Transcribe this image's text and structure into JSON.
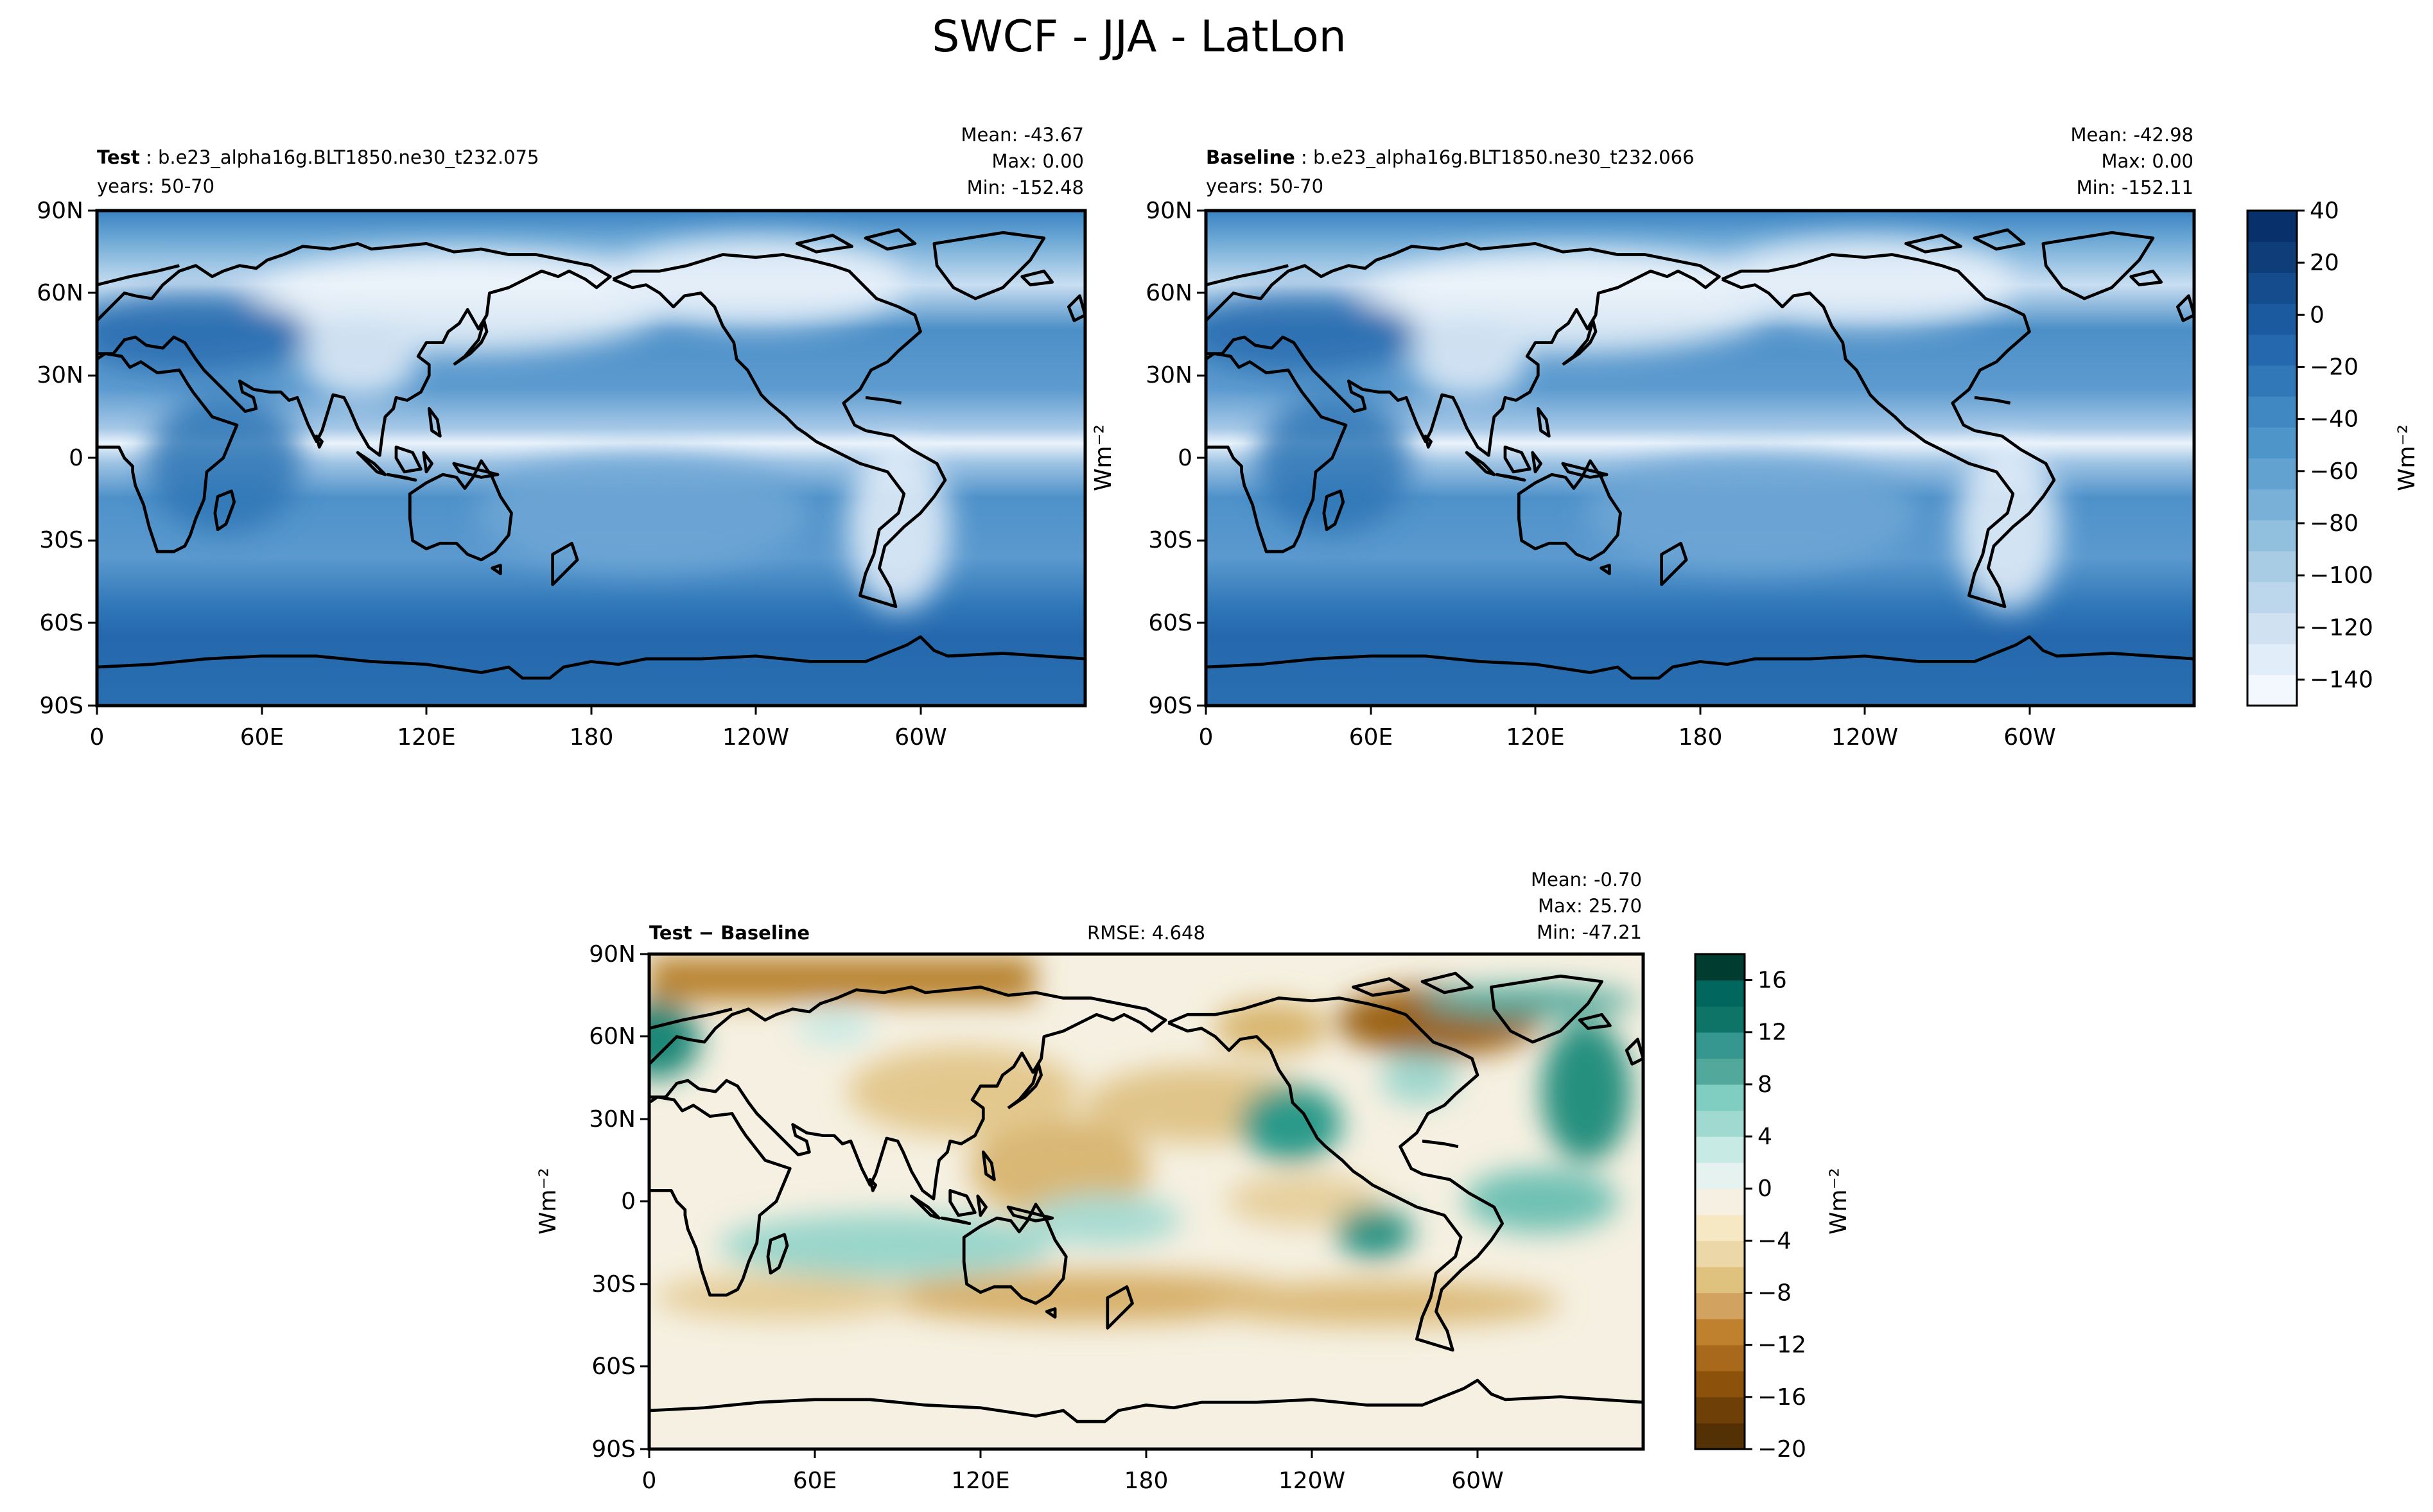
{
  "figure": {
    "title": "SWCF - JJA - LatLon"
  },
  "lat_ticks": [
    "90N",
    "60N",
    "30N",
    "0",
    "30S",
    "60S",
    "90S"
  ],
  "lon_ticks": [
    "0",
    "60E",
    "120E",
    "180",
    "120W",
    "60W"
  ],
  "panels": {
    "test": {
      "name_bold": "Test",
      "case": "b.e23_alpha16g.BLT1850.ne30_t232.075",
      "years": "years: 50-70",
      "stats": [
        "Mean: -43.67",
        "Max:  0.00",
        "Min: -152.48"
      ],
      "units": "Wm⁻²"
    },
    "baseline": {
      "name_bold": "Baseline",
      "case": "b.e23_alpha16g.BLT1850.ne30_t232.066",
      "years": "years: 50-70",
      "stats": [
        "Mean: -42.98",
        "Max:  0.00",
        "Min: -152.11"
      ]
    },
    "diff": {
      "title": "Test − Baseline",
      "rmse": "RMSE: 4.648",
      "stats": [
        "Mean: -0.70",
        "Max: 25.70",
        "Min: -47.21"
      ],
      "units": "Wm⁻²"
    }
  },
  "colorbars": {
    "top": {
      "label": "Wm⁻²",
      "ticks": [
        "40",
        "20",
        "0",
        "−20",
        "−40",
        "−60",
        "−80",
        "−100",
        "−120",
        "−140"
      ],
      "range": [
        -150,
        40
      ],
      "colors": [
        "#f2f8fd",
        "#e1edf8",
        "#d0e2f2",
        "#bcd7eb",
        "#a9cce5",
        "#91bfde",
        "#79b0d7",
        "#62a2d0",
        "#4e95c9",
        "#3f88c2",
        "#3178b8",
        "#2668ad",
        "#1c5aa0",
        "#154c8e",
        "#0e3d79",
        "#08306b"
      ]
    },
    "diff": {
      "label": "Wm⁻²",
      "ticks": [
        "16",
        "12",
        "8",
        "4",
        "0",
        "−4",
        "−8",
        "−12",
        "−16",
        "−20"
      ],
      "range": [
        -20,
        18
      ],
      "colors": [
        "#543005",
        "#6e4008",
        "#8c510a",
        "#a8691c",
        "#bf812d",
        "#d2a360",
        "#dfc27d",
        "#ecd7a8",
        "#f6e8c3",
        "#f5f0e1",
        "#e6f2ef",
        "#c7eae5",
        "#9fd9cf",
        "#80cdc1",
        "#52a99b",
        "#35978f",
        "#0e7468",
        "#01665e",
        "#003c30"
      ]
    }
  },
  "colors": {
    "land_outline": "#000000",
    "ocean_mid": "#3a82c0",
    "cloud_bright": "#f4f8fc",
    "diff_bg": "#f5f0e1",
    "diff_pos": "#2a9a8a",
    "diff_neg": "#b8822e"
  }
}
